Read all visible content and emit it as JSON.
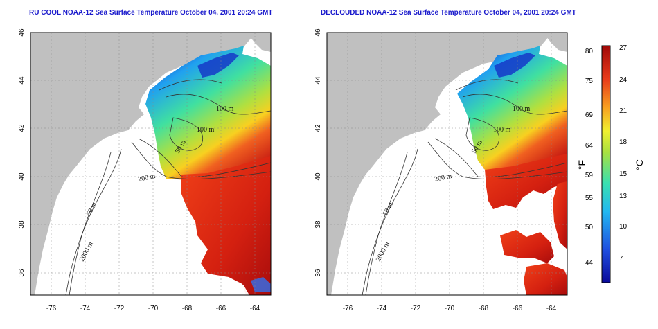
{
  "panels": [
    {
      "id": "left",
      "title": "RU COOL NOAA-12 Sea Surface Temperature October 04, 2001 20:24 GMT",
      "contour_labels": [
        "100 m",
        "100 m",
        "50 m",
        "200 m",
        "50 m",
        "2000 m"
      ]
    },
    {
      "id": "right",
      "title": "DECLOUDED NOAA-12 Sea Surface Temperature October 04, 2001 20:24 GMT",
      "contour_labels": [
        "100 m",
        "100 m",
        "50 m",
        "200 m",
        "50 m",
        "2000 m"
      ]
    }
  ],
  "axes": {
    "lon_ticks": [
      "-76",
      "-74",
      "-72",
      "-70",
      "-68",
      "-66",
      "-64"
    ],
    "lat_ticks": [
      "36",
      "38",
      "40",
      "42",
      "44",
      "46"
    ]
  },
  "colorbar": {
    "fahrenheit_ticks": [
      "80",
      "75",
      "69",
      "64",
      "59",
      "55",
      "50",
      "44"
    ],
    "celsius_ticks": [
      "27",
      "24",
      "21",
      "18",
      "15",
      "13",
      "10",
      "7"
    ],
    "fahrenheit_unit": "°F",
    "celsius_unit": "°C"
  },
  "colors": {
    "land": "#c0c0c0",
    "cloud": "#ffffff",
    "title": "#1a1acc",
    "cold": "#1010c0",
    "warm": "#c01010"
  }
}
